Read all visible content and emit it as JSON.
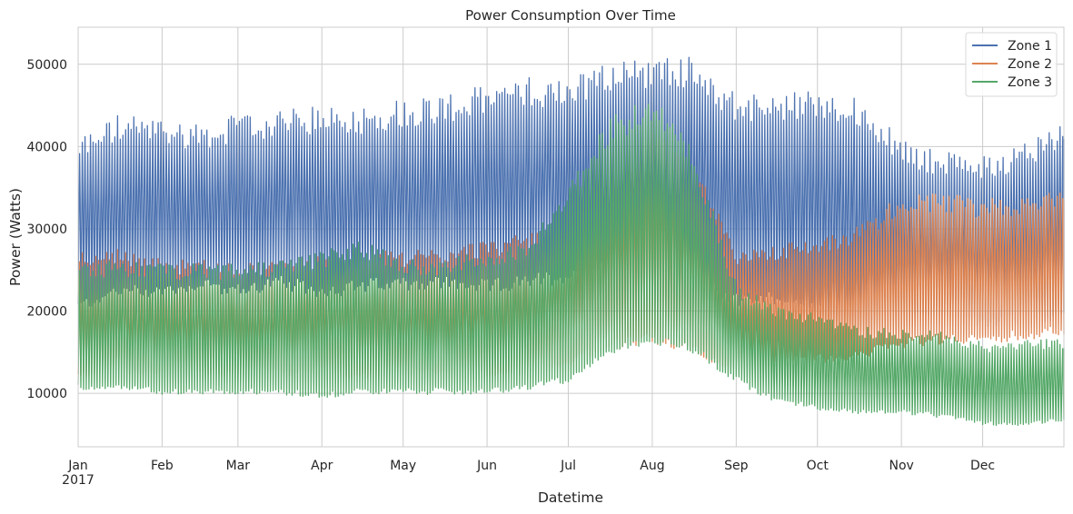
{
  "chart_data": {
    "type": "line",
    "title": "Power Consumption Over Time",
    "xlabel": "Datetime",
    "ylabel": "Power (Watts)",
    "xlim": [
      "2017-01-01",
      "2017-12-31"
    ],
    "ylim": [
      3500,
      54500
    ],
    "grid": true,
    "legend_position": "top-right",
    "x_ticks": [
      {
        "date": "2017-01-01",
        "label": "Jan",
        "sublabel": "2017"
      },
      {
        "date": "2017-02-01",
        "label": "Feb"
      },
      {
        "date": "2017-03-01",
        "label": "Mar"
      },
      {
        "date": "2017-04-01",
        "label": "Apr"
      },
      {
        "date": "2017-05-01",
        "label": "May"
      },
      {
        "date": "2017-06-01",
        "label": "Jun"
      },
      {
        "date": "2017-07-01",
        "label": "Jul"
      },
      {
        "date": "2017-08-01",
        "label": "Aug"
      },
      {
        "date": "2017-09-01",
        "label": "Sep"
      },
      {
        "date": "2017-10-01",
        "label": "Oct"
      },
      {
        "date": "2017-11-01",
        "label": "Nov"
      },
      {
        "date": "2017-12-01",
        "label": "Dec"
      }
    ],
    "y_ticks": [
      {
        "value": 10000,
        "label": "10000"
      },
      {
        "value": 20000,
        "label": "20000"
      },
      {
        "value": 30000,
        "label": "30000"
      },
      {
        "value": 40000,
        "label": "40000"
      },
      {
        "value": 50000,
        "label": "50000"
      }
    ],
    "series": [
      {
        "name": "Zone 1",
        "color": "#4c72b0",
        "x": [
          "2017-01-01",
          "2017-01-15",
          "2017-02-01",
          "2017-02-15",
          "2017-03-01",
          "2017-03-15",
          "2017-04-01",
          "2017-04-15",
          "2017-05-01",
          "2017-05-15",
          "2017-06-01",
          "2017-06-15",
          "2017-07-01",
          "2017-07-15",
          "2017-08-01",
          "2017-08-15",
          "2017-09-01",
          "2017-09-15",
          "2017-10-01",
          "2017-10-15",
          "2017-11-01",
          "2017-11-15",
          "2017-12-01",
          "2017-12-15",
          "2017-12-31"
        ],
        "daily_min": [
          21000,
          23000,
          23000,
          24000,
          23000,
          24000,
          23000,
          23500,
          24000,
          24000,
          23500,
          24000,
          25000,
          26000,
          26000,
          24000,
          22000,
          22000,
          21000,
          20000,
          21000,
          20500,
          19000,
          19500,
          20000
        ],
        "daily_max": [
          41000,
          43500,
          43000,
          42500,
          43500,
          44000,
          44500,
          44500,
          45500,
          46000,
          47000,
          48000,
          48000,
          50000,
          50500,
          50500,
          46000,
          46000,
          46500,
          45500,
          40500,
          39000,
          38500,
          40000,
          43000
        ]
      },
      {
        "name": "Zone 2",
        "color": "#dd8452",
        "x": [
          "2017-01-01",
          "2017-01-15",
          "2017-02-01",
          "2017-02-15",
          "2017-03-01",
          "2017-03-15",
          "2017-04-01",
          "2017-04-15",
          "2017-05-01",
          "2017-05-15",
          "2017-06-01",
          "2017-06-15",
          "2017-07-01",
          "2017-07-15",
          "2017-08-01",
          "2017-08-15",
          "2017-09-01",
          "2017-09-15",
          "2017-10-01",
          "2017-10-15",
          "2017-11-01",
          "2017-11-15",
          "2017-12-01",
          "2017-12-15",
          "2017-12-31"
        ],
        "daily_min": [
          12500,
          13000,
          13000,
          13000,
          12500,
          13000,
          12500,
          12500,
          12500,
          13000,
          12500,
          13000,
          14000,
          16000,
          17000,
          16000,
          13000,
          14000,
          14500,
          15000,
          16500,
          17000,
          17000,
          17500,
          18000
        ],
        "daily_max": [
          27000,
          27500,
          26000,
          26000,
          25500,
          26000,
          26500,
          27000,
          27000,
          27500,
          28500,
          29000,
          30500,
          37000,
          42000,
          38000,
          27000,
          28000,
          28500,
          30000,
          34000,
          34000,
          33500,
          34000,
          34000
        ]
      },
      {
        "name": "Zone 3",
        "color": "#55a868",
        "x": [
          "2017-01-01",
          "2017-01-15",
          "2017-02-01",
          "2017-02-15",
          "2017-03-01",
          "2017-03-15",
          "2017-04-01",
          "2017-04-15",
          "2017-05-01",
          "2017-05-15",
          "2017-06-01",
          "2017-06-15",
          "2017-07-01",
          "2017-07-15",
          "2017-08-01",
          "2017-08-15",
          "2017-09-01",
          "2017-09-15",
          "2017-10-01",
          "2017-10-15",
          "2017-11-01",
          "2017-11-15",
          "2017-12-01",
          "2017-12-15",
          "2017-12-31"
        ],
        "daily_min": [
          11000,
          11000,
          10500,
          10500,
          10500,
          10500,
          10000,
          10500,
          10500,
          10500,
          10500,
          11000,
          12000,
          15500,
          17000,
          16000,
          12000,
          9500,
          8500,
          8000,
          8000,
          7500,
          6500,
          6500,
          7000
        ],
        "daily_max": [
          25500,
          26000,
          25500,
          25500,
          25500,
          26000,
          27000,
          28500,
          26000,
          26000,
          27000,
          28500,
          35000,
          43000,
          46000,
          40000,
          23000,
          20500,
          19500,
          18000,
          17500,
          17500,
          16000,
          16500,
          16500
        ]
      }
    ]
  }
}
